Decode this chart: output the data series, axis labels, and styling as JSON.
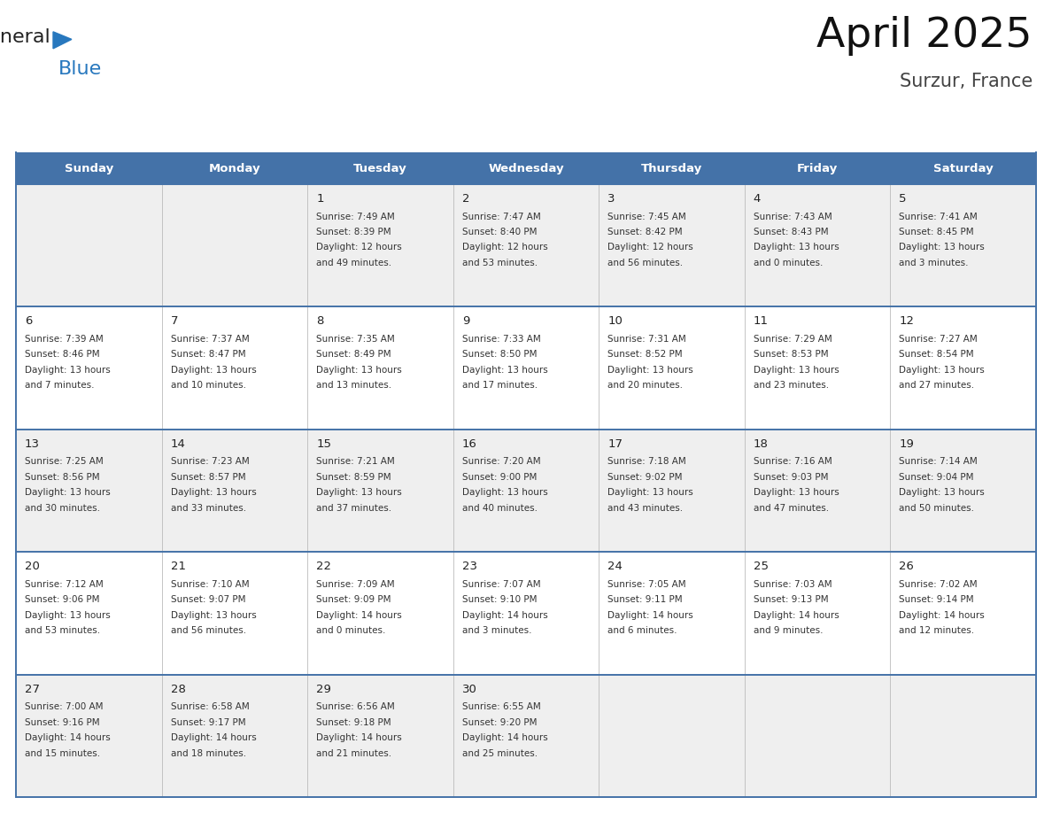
{
  "title": "April 2025",
  "subtitle": "Surzur, France",
  "header_color": "#4472A8",
  "header_text_color": "#FFFFFF",
  "day_names": [
    "Sunday",
    "Monday",
    "Tuesday",
    "Wednesday",
    "Thursday",
    "Friday",
    "Saturday"
  ],
  "background_color": "#FFFFFF",
  "cell_bg_even": "#EFEFEF",
  "cell_bg_odd": "#FFFFFF",
  "text_color": "#333333",
  "line_color": "#4472A8",
  "logo_color1": "#222222",
  "logo_color2": "#2878BE",
  "logo_tri_color": "#2878BE",
  "title_color": "#111111",
  "weeks": [
    [
      {
        "day": "",
        "info": ""
      },
      {
        "day": "",
        "info": ""
      },
      {
        "day": "1",
        "info": "Sunrise: 7:49 AM\nSunset: 8:39 PM\nDaylight: 12 hours\nand 49 minutes."
      },
      {
        "day": "2",
        "info": "Sunrise: 7:47 AM\nSunset: 8:40 PM\nDaylight: 12 hours\nand 53 minutes."
      },
      {
        "day": "3",
        "info": "Sunrise: 7:45 AM\nSunset: 8:42 PM\nDaylight: 12 hours\nand 56 minutes."
      },
      {
        "day": "4",
        "info": "Sunrise: 7:43 AM\nSunset: 8:43 PM\nDaylight: 13 hours\nand 0 minutes."
      },
      {
        "day": "5",
        "info": "Sunrise: 7:41 AM\nSunset: 8:45 PM\nDaylight: 13 hours\nand 3 minutes."
      }
    ],
    [
      {
        "day": "6",
        "info": "Sunrise: 7:39 AM\nSunset: 8:46 PM\nDaylight: 13 hours\nand 7 minutes."
      },
      {
        "day": "7",
        "info": "Sunrise: 7:37 AM\nSunset: 8:47 PM\nDaylight: 13 hours\nand 10 minutes."
      },
      {
        "day": "8",
        "info": "Sunrise: 7:35 AM\nSunset: 8:49 PM\nDaylight: 13 hours\nand 13 minutes."
      },
      {
        "day": "9",
        "info": "Sunrise: 7:33 AM\nSunset: 8:50 PM\nDaylight: 13 hours\nand 17 minutes."
      },
      {
        "day": "10",
        "info": "Sunrise: 7:31 AM\nSunset: 8:52 PM\nDaylight: 13 hours\nand 20 minutes."
      },
      {
        "day": "11",
        "info": "Sunrise: 7:29 AM\nSunset: 8:53 PM\nDaylight: 13 hours\nand 23 minutes."
      },
      {
        "day": "12",
        "info": "Sunrise: 7:27 AM\nSunset: 8:54 PM\nDaylight: 13 hours\nand 27 minutes."
      }
    ],
    [
      {
        "day": "13",
        "info": "Sunrise: 7:25 AM\nSunset: 8:56 PM\nDaylight: 13 hours\nand 30 minutes."
      },
      {
        "day": "14",
        "info": "Sunrise: 7:23 AM\nSunset: 8:57 PM\nDaylight: 13 hours\nand 33 minutes."
      },
      {
        "day": "15",
        "info": "Sunrise: 7:21 AM\nSunset: 8:59 PM\nDaylight: 13 hours\nand 37 minutes."
      },
      {
        "day": "16",
        "info": "Sunrise: 7:20 AM\nSunset: 9:00 PM\nDaylight: 13 hours\nand 40 minutes."
      },
      {
        "day": "17",
        "info": "Sunrise: 7:18 AM\nSunset: 9:02 PM\nDaylight: 13 hours\nand 43 minutes."
      },
      {
        "day": "18",
        "info": "Sunrise: 7:16 AM\nSunset: 9:03 PM\nDaylight: 13 hours\nand 47 minutes."
      },
      {
        "day": "19",
        "info": "Sunrise: 7:14 AM\nSunset: 9:04 PM\nDaylight: 13 hours\nand 50 minutes."
      }
    ],
    [
      {
        "day": "20",
        "info": "Sunrise: 7:12 AM\nSunset: 9:06 PM\nDaylight: 13 hours\nand 53 minutes."
      },
      {
        "day": "21",
        "info": "Sunrise: 7:10 AM\nSunset: 9:07 PM\nDaylight: 13 hours\nand 56 minutes."
      },
      {
        "day": "22",
        "info": "Sunrise: 7:09 AM\nSunset: 9:09 PM\nDaylight: 14 hours\nand 0 minutes."
      },
      {
        "day": "23",
        "info": "Sunrise: 7:07 AM\nSunset: 9:10 PM\nDaylight: 14 hours\nand 3 minutes."
      },
      {
        "day": "24",
        "info": "Sunrise: 7:05 AM\nSunset: 9:11 PM\nDaylight: 14 hours\nand 6 minutes."
      },
      {
        "day": "25",
        "info": "Sunrise: 7:03 AM\nSunset: 9:13 PM\nDaylight: 14 hours\nand 9 minutes."
      },
      {
        "day": "26",
        "info": "Sunrise: 7:02 AM\nSunset: 9:14 PM\nDaylight: 14 hours\nand 12 minutes."
      }
    ],
    [
      {
        "day": "27",
        "info": "Sunrise: 7:00 AM\nSunset: 9:16 PM\nDaylight: 14 hours\nand 15 minutes."
      },
      {
        "day": "28",
        "info": "Sunrise: 6:58 AM\nSunset: 9:17 PM\nDaylight: 14 hours\nand 18 minutes."
      },
      {
        "day": "29",
        "info": "Sunrise: 6:56 AM\nSunset: 9:18 PM\nDaylight: 14 hours\nand 21 minutes."
      },
      {
        "day": "30",
        "info": "Sunrise: 6:55 AM\nSunset: 9:20 PM\nDaylight: 14 hours\nand 25 minutes."
      },
      {
        "day": "",
        "info": ""
      },
      {
        "day": "",
        "info": ""
      },
      {
        "day": "",
        "info": ""
      }
    ]
  ]
}
